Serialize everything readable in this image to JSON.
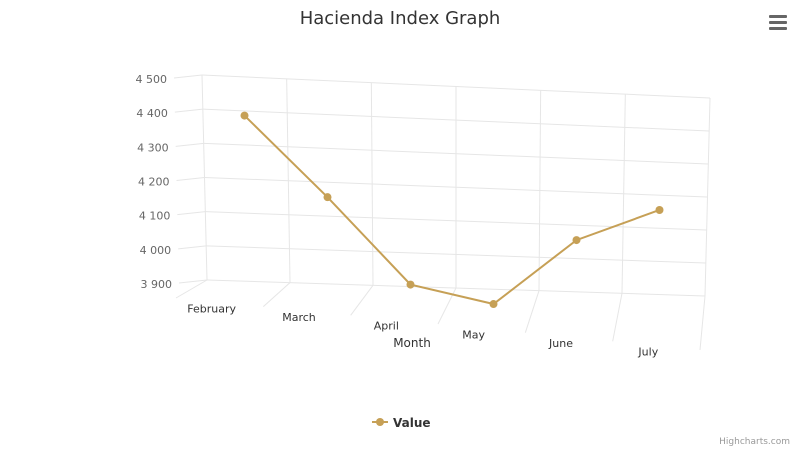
{
  "colors": {
    "series": "#c6a056",
    "grid": "#e6e6e6",
    "text": "#333333",
    "tick": "#666666",
    "credit": "#999999",
    "menu": "#666666"
  },
  "chart_data": {
    "type": "line",
    "title": "Hacienda Index Graph",
    "xlabel": "Month",
    "ylabel": "",
    "categories": [
      "February",
      "March",
      "April",
      "May",
      "June",
      "July"
    ],
    "series": [
      {
        "name": "Value",
        "values": [
          4410,
          4180,
          3930,
          3880,
          4080,
          4180
        ]
      }
    ],
    "y_ticks": [
      "3 900",
      "4 000",
      "4 100",
      "4 200",
      "4 300",
      "4 400",
      "4 500"
    ],
    "ylim": [
      3900,
      4500
    ],
    "grid": true,
    "legend": "bottom-center",
    "three_d": true
  },
  "menu": {
    "icon": "hamburger-menu-icon"
  },
  "credits": "Highcharts.com"
}
